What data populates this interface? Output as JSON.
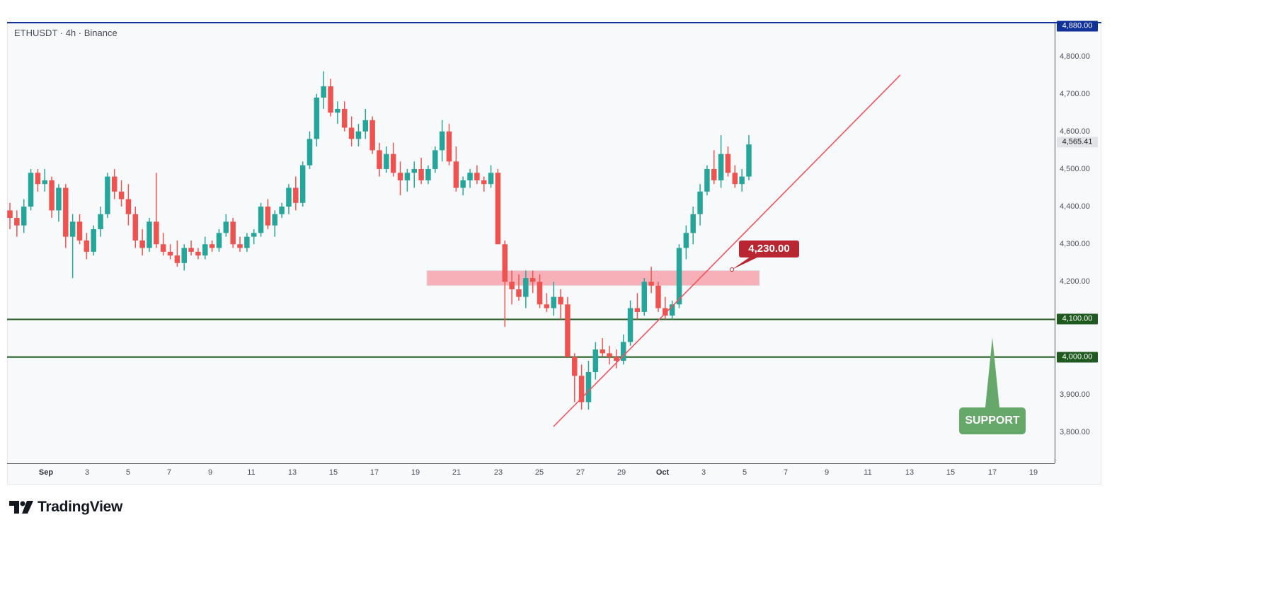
{
  "header": {
    "symbol_line": "ETHUSDT · 4h · Binance"
  },
  "branding": {
    "logo_text": "TradingView"
  },
  "annotations": {
    "resistance_label": "4,230.00",
    "support_label": "SUPPORT"
  },
  "price_axis": {
    "ticks": [
      "4,800.00",
      "4,700.00",
      "4,600.00",
      "4,500.00",
      "4,400.00",
      "4,300.00",
      "4,200.00",
      "3,900.00",
      "3,800.00"
    ],
    "tags": {
      "top": "4,880.00",
      "last": "4,565.41",
      "level_high": "4,100.00",
      "level_low": "4,000.00"
    }
  },
  "time_axis": {
    "ticks": [
      "Sep",
      "3",
      "5",
      "7",
      "9",
      "11",
      "13",
      "15",
      "17",
      "19",
      "21",
      "23",
      "25",
      "27",
      "29",
      "Oct",
      "3",
      "5",
      "7",
      "9",
      "11",
      "13",
      "15",
      "17",
      "19"
    ]
  },
  "colors": {
    "up": "#26a69a",
    "down": "#ef5350",
    "support_line": "#1f5a1f",
    "trendline": "#f2525d",
    "zone": "#f7a9b1",
    "callout": "#b82632",
    "support_box": "#65a86a",
    "top_tag": "#10309a"
  },
  "chart_data": {
    "type": "candlestick",
    "title": "ETHUSDT · 4h · Binance",
    "xlabel": "",
    "ylabel": "",
    "ylim": [
      3750,
      4880
    ],
    "x_ticks": [
      "Sep",
      "3",
      "5",
      "7",
      "9",
      "11",
      "13",
      "15",
      "17",
      "19",
      "21",
      "23",
      "25",
      "27",
      "29",
      "Oct",
      "3",
      "5",
      "7",
      "9",
      "11",
      "13",
      "15",
      "17",
      "19"
    ],
    "y_ticks": [
      3800,
      3900,
      4000,
      4100,
      4200,
      4300,
      4400,
      4500,
      4600,
      4700,
      4800
    ],
    "last_price": 4565.41,
    "horizontal_levels": [
      {
        "price": 4100,
        "label": "4,100.00",
        "color": "#1f5a1f"
      },
      {
        "price": 4000,
        "label": "4,000.00",
        "color": "#1f5a1f"
      }
    ],
    "zone": {
      "from": 4190,
      "to": 4230,
      "label": "4,230.00",
      "x_start": "Sep 19",
      "x_end": "Oct 6"
    },
    "trendline": {
      "from": {
        "x": "Sep 25",
        "y": 3815
      },
      "to": {
        "x": "Oct 12",
        "y": 4740
      }
    },
    "annotations": [
      "4,230.00",
      "SUPPORT"
    ],
    "grid": false,
    "candles": [
      [
        4390,
        4410,
        4340,
        4370
      ],
      [
        4370,
        4390,
        4320,
        4350
      ],
      [
        4350,
        4420,
        4330,
        4400
      ],
      [
        4400,
        4500,
        4390,
        4490
      ],
      [
        4490,
        4500,
        4440,
        4460
      ],
      [
        4460,
        4500,
        4440,
        4470
      ],
      [
        4470,
        4480,
        4370,
        4390
      ],
      [
        4390,
        4460,
        4360,
        4450
      ],
      [
        4450,
        4460,
        4290,
        4320
      ],
      [
        4320,
        4380,
        4210,
        4360
      ],
      [
        4360,
        4380,
        4300,
        4310
      ],
      [
        4310,
        4330,
        4260,
        4280
      ],
      [
        4280,
        4350,
        4270,
        4340
      ],
      [
        4340,
        4400,
        4320,
        4380
      ],
      [
        4380,
        4490,
        4370,
        4480
      ],
      [
        4480,
        4500,
        4420,
        4440
      ],
      [
        4440,
        4470,
        4400,
        4420
      ],
      [
        4420,
        4460,
        4350,
        4380
      ],
      [
        4380,
        4400,
        4290,
        4310
      ],
      [
        4310,
        4340,
        4270,
        4290
      ],
      [
        4290,
        4370,
        4280,
        4360
      ],
      [
        4360,
        4490,
        4290,
        4300
      ],
      [
        4300,
        4330,
        4270,
        4280
      ],
      [
        4280,
        4300,
        4260,
        4270
      ],
      [
        4270,
        4310,
        4240,
        4250
      ],
      [
        4250,
        4300,
        4230,
        4290
      ],
      [
        4290,
        4310,
        4270,
        4280
      ],
      [
        4280,
        4290,
        4260,
        4270
      ],
      [
        4270,
        4320,
        4260,
        4300
      ],
      [
        4300,
        4310,
        4280,
        4290
      ],
      [
        4290,
        4340,
        4280,
        4330
      ],
      [
        4330,
        4380,
        4320,
        4360
      ],
      [
        4360,
        4370,
        4290,
        4300
      ],
      [
        4300,
        4320,
        4280,
        4290
      ],
      [
        4290,
        4330,
        4280,
        4320
      ],
      [
        4320,
        4340,
        4300,
        4330
      ],
      [
        4330,
        4410,
        4320,
        4400
      ],
      [
        4400,
        4420,
        4340,
        4350
      ],
      [
        4350,
        4390,
        4320,
        4380
      ],
      [
        4380,
        4410,
        4370,
        4400
      ],
      [
        4400,
        4460,
        4380,
        4450
      ],
      [
        4450,
        4480,
        4390,
        4410
      ],
      [
        4410,
        4520,
        4400,
        4510
      ],
      [
        4510,
        4600,
        4500,
        4580
      ],
      [
        4580,
        4700,
        4560,
        4690
      ],
      [
        4690,
        4760,
        4660,
        4720
      ],
      [
        4720,
        4740,
        4640,
        4650
      ],
      [
        4650,
        4680,
        4620,
        4660
      ],
      [
        4660,
        4680,
        4600,
        4610
      ],
      [
        4610,
        4640,
        4560,
        4580
      ],
      [
        4580,
        4620,
        4560,
        4600
      ],
      [
        4600,
        4660,
        4580,
        4630
      ],
      [
        4630,
        4640,
        4540,
        4550
      ],
      [
        4550,
        4570,
        4480,
        4500
      ],
      [
        4500,
        4560,
        4490,
        4540
      ],
      [
        4540,
        4570,
        4480,
        4490
      ],
      [
        4490,
        4520,
        4430,
        4470
      ],
      [
        4470,
        4500,
        4440,
        4490
      ],
      [
        4490,
        4520,
        4450,
        4500
      ],
      [
        4500,
        4530,
        4460,
        4470
      ],
      [
        4470,
        4510,
        4460,
        4500
      ],
      [
        4500,
        4560,
        4490,
        4550
      ],
      [
        4550,
        4630,
        4520,
        4600
      ],
      [
        4600,
        4620,
        4510,
        4520
      ],
      [
        4520,
        4560,
        4440,
        4450
      ],
      [
        4450,
        4480,
        4430,
        4470
      ],
      [
        4470,
        4500,
        4450,
        4490
      ],
      [
        4490,
        4510,
        4460,
        4470
      ],
      [
        4470,
        4480,
        4440,
        4460
      ],
      [
        4460,
        4510,
        4450,
        4490
      ],
      [
        4490,
        4500,
        4340,
        4300
      ],
      [
        4300,
        4310,
        4080,
        4200
      ],
      [
        4200,
        4230,
        4140,
        4180
      ],
      [
        4180,
        4220,
        4150,
        4160
      ],
      [
        4160,
        4230,
        4130,
        4210
      ],
      [
        4210,
        4230,
        4170,
        4200
      ],
      [
        4200,
        4220,
        4130,
        4140
      ],
      [
        4140,
        4170,
        4120,
        4130
      ],
      [
        4130,
        4200,
        4110,
        4160
      ],
      [
        4160,
        4180,
        4100,
        4140
      ],
      [
        4140,
        4160,
        4060,
        4000
      ],
      [
        4000,
        4010,
        3880,
        3950
      ],
      [
        3950,
        3980,
        3860,
        3880
      ],
      [
        3880,
        3990,
        3860,
        3960
      ],
      [
        3960,
        4040,
        3940,
        4020
      ],
      [
        4020,
        4050,
        4000,
        4010
      ],
      [
        4010,
        4030,
        3980,
        4000
      ],
      [
        4000,
        4020,
        3970,
        3990
      ],
      [
        3990,
        4060,
        3980,
        4040
      ],
      [
        4040,
        4150,
        4030,
        4130
      ],
      [
        4130,
        4170,
        4100,
        4120
      ],
      [
        4120,
        4210,
        4110,
        4200
      ],
      [
        4200,
        4240,
        4170,
        4190
      ],
      [
        4190,
        4200,
        4120,
        4130
      ],
      [
        4130,
        4160,
        4100,
        4110
      ],
      [
        4110,
        4150,
        4100,
        4140
      ],
      [
        4140,
        4300,
        4130,
        4290
      ],
      [
        4290,
        4350,
        4260,
        4330
      ],
      [
        4330,
        4400,
        4300,
        4380
      ],
      [
        4380,
        4460,
        4350,
        4440
      ],
      [
        4440,
        4510,
        4430,
        4500
      ],
      [
        4500,
        4550,
        4460,
        4470
      ],
      [
        4470,
        4590,
        4450,
        4540
      ],
      [
        4540,
        4560,
        4480,
        4490
      ],
      [
        4490,
        4510,
        4450,
        4460
      ],
      [
        4460,
        4500,
        4440,
        4480
      ],
      [
        4480,
        4590,
        4470,
        4565.41
      ]
    ]
  }
}
